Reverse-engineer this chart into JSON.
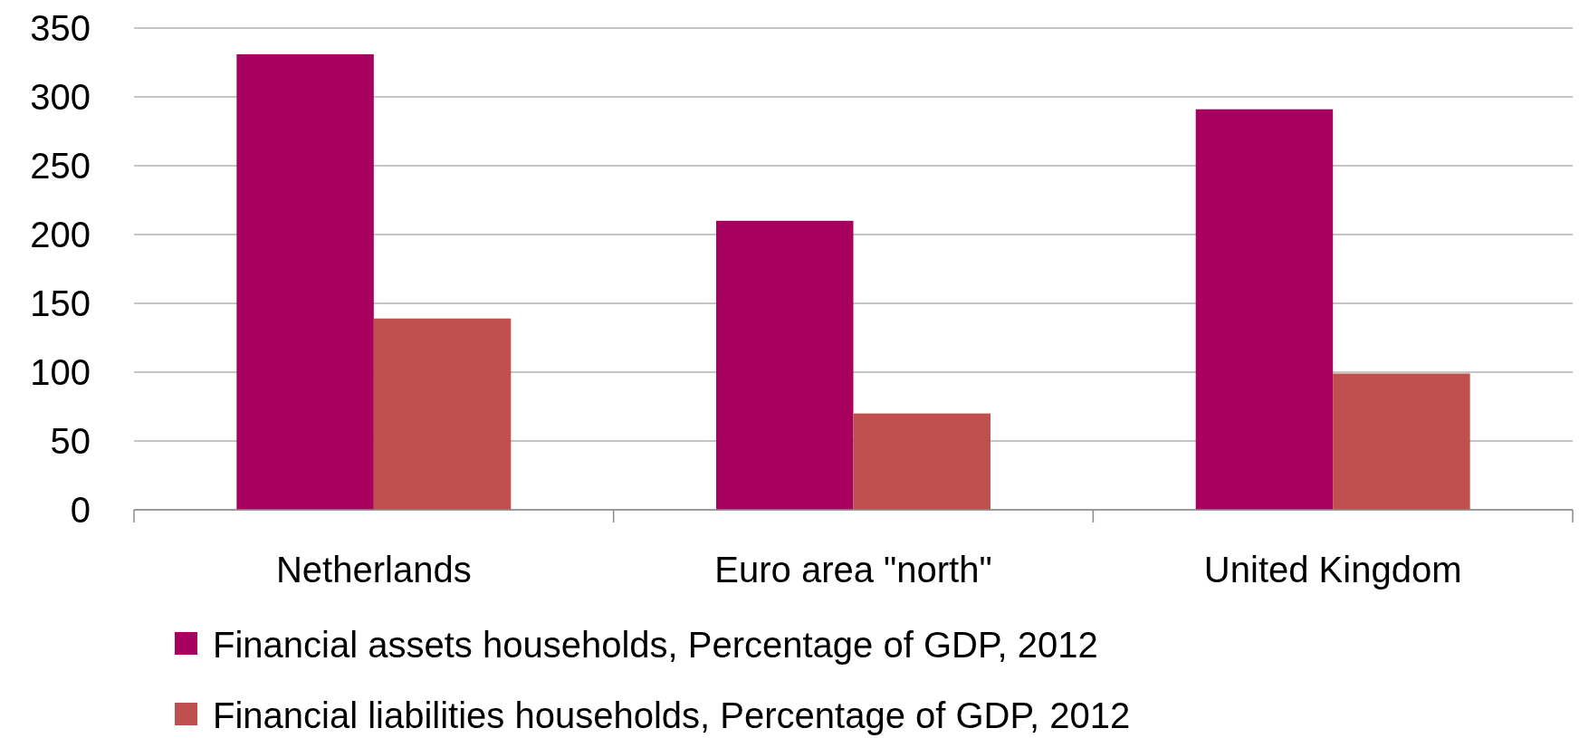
{
  "chart_data": {
    "type": "bar",
    "categories": [
      "Netherlands",
      "Euro area \"north\"",
      "United Kingdom"
    ],
    "series": [
      {
        "name": "Financial assets households, Percentage of GDP, 2012",
        "color": "#a8005e",
        "values": [
          331,
          210,
          291
        ]
      },
      {
        "name": "Financial liabilities households, Percentage of GDP, 2012",
        "color": "#c0504d",
        "values": [
          139,
          70,
          99
        ]
      }
    ],
    "ylim": [
      0,
      350
    ],
    "yticks": [
      0,
      50,
      100,
      150,
      200,
      250,
      300,
      350
    ],
    "grid": "y",
    "legend": "bottom"
  }
}
